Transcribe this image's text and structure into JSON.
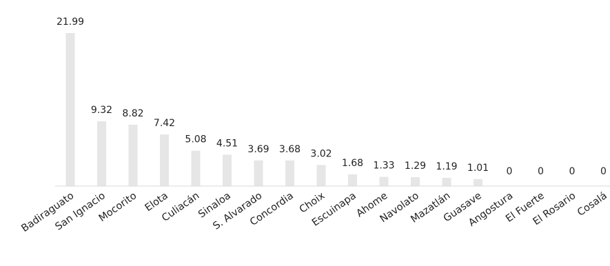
{
  "chart_data": {
    "type": "bar",
    "categories": [
      "Badiraguato",
      "San Ignacio",
      "Mocorito",
      "Elota",
      "Culiacán",
      "Sinaloa",
      "S. Alvarado",
      "Concordia",
      "Choix",
      "Escuinapa",
      "Ahome",
      "Navolato",
      "Mazatlán",
      "Guasave",
      "Angostura",
      "El Fuerte",
      "El Rosario",
      "Cosalá"
    ],
    "values": [
      21.99,
      9.32,
      8.82,
      7.42,
      5.08,
      4.51,
      3.69,
      3.68,
      3.02,
      1.68,
      1.33,
      1.29,
      1.19,
      1.01,
      0,
      0,
      0,
      0
    ],
    "data_labels": [
      "21.99",
      "9.32",
      "8.82",
      "7.42",
      "5.08",
      "4.51",
      "3.69",
      "3.68",
      "3.02",
      "1.68",
      "1.33",
      "1.29",
      "1.19",
      "1.01",
      "0",
      "0",
      "0",
      "0"
    ],
    "title": "",
    "xlabel": "",
    "ylabel": "",
    "ylim": [
      0,
      22
    ],
    "grid": false,
    "legend": "none",
    "colors": {
      "bar": "#e6e6e6",
      "axis": "#d9d9d9",
      "text": "#222222"
    }
  }
}
